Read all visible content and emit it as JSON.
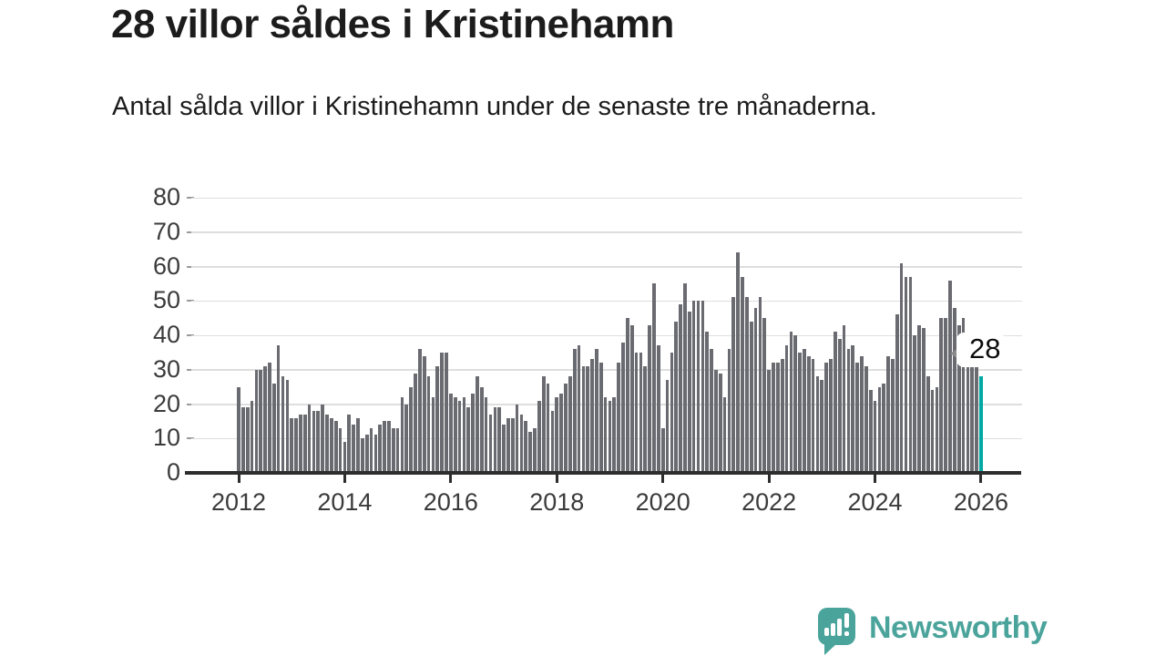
{
  "header": {
    "title": "28 villor såldes i Kristinehamn",
    "subtitle": "Antal sålda villor i Kristinehamn under de senaste tre månaderna."
  },
  "chart_data": {
    "type": "bar",
    "title": "28 villor såldes i Kristinehamn",
    "xlabel": "",
    "ylabel": "",
    "x_start": "2012-01",
    "x_end": "2026-01",
    "frequency": "monthly",
    "ylim": [
      0,
      80
    ],
    "grid": true,
    "y_ticks": [
      0,
      10,
      20,
      30,
      40,
      50,
      60,
      70,
      80
    ],
    "x_tick_labels": [
      "2012",
      "2014",
      "2016",
      "2018",
      "2020",
      "2022",
      "2024",
      "2026"
    ],
    "values": [
      25,
      19,
      19,
      21,
      30,
      30,
      31,
      32,
      26,
      37,
      28,
      27,
      16,
      16,
      17,
      17,
      20,
      18,
      18,
      20,
      17,
      16,
      15,
      13,
      9,
      17,
      14,
      16,
      10,
      11,
      13,
      11,
      14,
      15,
      15,
      13,
      13,
      22,
      20,
      25,
      29,
      36,
      34,
      28,
      22,
      31,
      35,
      35,
      23,
      22,
      21,
      22,
      19,
      23,
      28,
      25,
      22,
      17,
      19,
      19,
      14,
      16,
      16,
      20,
      17,
      15,
      12,
      13,
      21,
      28,
      26,
      18,
      22,
      23,
      26,
      28,
      36,
      37,
      31,
      31,
      33,
      36,
      32,
      22,
      21,
      22,
      32,
      38,
      45,
      43,
      35,
      35,
      31,
      43,
      55,
      37,
      13,
      27,
      35,
      44,
      49,
      55,
      47,
      50,
      50,
      50,
      41,
      36,
      30,
      29,
      22,
      36,
      51,
      64,
      57,
      51,
      44,
      48,
      51,
      45,
      30,
      32,
      32,
      33,
      37,
      41,
      40,
      35,
      36,
      34,
      33,
      28,
      27,
      32,
      33,
      41,
      39,
      43,
      36,
      37,
      32,
      34,
      31,
      24,
      21,
      25,
      26,
      34,
      33,
      46,
      61,
      57,
      57,
      40,
      43,
      42,
      28,
      24,
      25,
      45,
      45,
      56,
      48,
      43,
      45,
      40,
      39,
      37,
      28
    ],
    "highlight": {
      "index": 168,
      "value": 28,
      "label": "28"
    },
    "colors": {
      "bar": "#6a6a71",
      "highlight_bar": "#00a9a3",
      "grid": "#dedede",
      "axis": "#2d2d2d",
      "tick_text": "#3b3b3b"
    }
  },
  "annotation": {
    "label": "28"
  },
  "branding": {
    "wordmark": "Newsworthy",
    "color": "#4ba49b",
    "icon": "chart-speech-bubble"
  }
}
